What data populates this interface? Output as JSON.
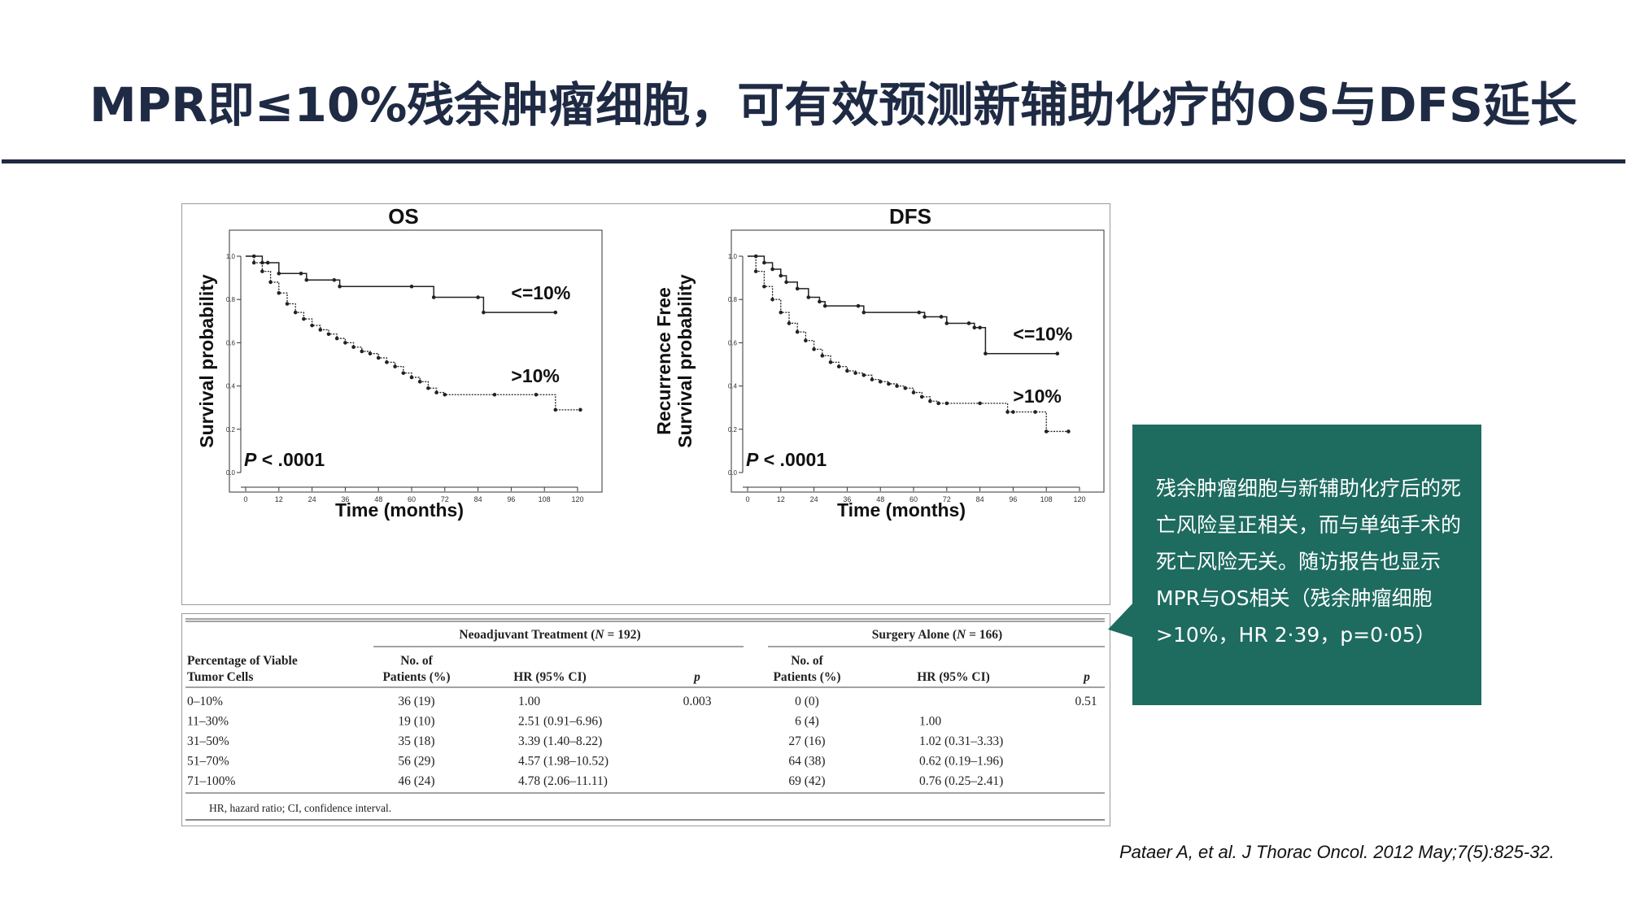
{
  "slide": {
    "title": "MPR即≤10%残余肿瘤细胞，可有效预测新辅助化疗的OS与DFS延长",
    "callout": "残余肿瘤细胞与新辅助化疗后的死亡风险呈正相关，而与单纯手术的死亡风险无关。随访报告也显示MPR与OS相关（残余肿瘤细胞>10%，HR 2·39，p=0·05）",
    "reference": "Pataer A, et al. J Thorac Oncol. 2012 May;7(5):825-32.",
    "colors": {
      "title": "#1f2a44",
      "callout_bg": "#1e6b60"
    }
  },
  "chart_data": [
    {
      "type": "line",
      "title": "OS",
      "xlabel": "Time (months)",
      "ylabel": "Survival probability",
      "xlim": [
        0,
        120
      ],
      "ylim": [
        0,
        1.0
      ],
      "xticks": [
        "0",
        "12",
        "24",
        "36",
        "48",
        "60",
        "72",
        "84",
        "96",
        "108",
        "120"
      ],
      "yticks": [
        "0.0",
        "0.2",
        "0.4",
        "0.6",
        "0.8",
        "1.0"
      ],
      "annotation": "P < .0001",
      "series": [
        {
          "name": "<=10%",
          "style": "solid",
          "x": [
            0,
            3,
            6,
            8,
            12,
            20,
            22,
            32,
            34,
            60,
            68,
            84,
            86,
            112
          ],
          "y": [
            1.0,
            1.0,
            0.97,
            0.97,
            0.92,
            0.92,
            0.89,
            0.89,
            0.86,
            0.86,
            0.81,
            0.81,
            0.74,
            0.74
          ]
        },
        {
          "name": ">10%",
          "style": "dotted",
          "x": [
            0,
            3,
            6,
            9,
            12,
            15,
            18,
            21,
            24,
            27,
            30,
            33,
            36,
            39,
            42,
            45,
            48,
            51,
            54,
            57,
            60,
            63,
            66,
            69,
            72,
            90,
            105,
            112,
            121
          ],
          "y": [
            1.0,
            0.97,
            0.93,
            0.88,
            0.83,
            0.78,
            0.74,
            0.71,
            0.68,
            0.66,
            0.64,
            0.62,
            0.6,
            0.58,
            0.56,
            0.55,
            0.53,
            0.51,
            0.49,
            0.46,
            0.44,
            0.42,
            0.39,
            0.37,
            0.36,
            0.36,
            0.36,
            0.29,
            0.29
          ]
        }
      ]
    },
    {
      "type": "line",
      "title": "DFS",
      "xlabel": "Time (months)",
      "ylabel": "Recurrence Free Survival probability",
      "xlim": [
        0,
        120
      ],
      "ylim": [
        0,
        1.0
      ],
      "xticks": [
        "0",
        "12",
        "24",
        "36",
        "48",
        "60",
        "72",
        "84",
        "96",
        "108",
        "120"
      ],
      "yticks": [
        "0.0",
        "0.2",
        "0.4",
        "0.6",
        "0.8",
        "1.0"
      ],
      "annotation": "P < .0001",
      "series": [
        {
          "name": "<=10%",
          "style": "solid",
          "x": [
            0,
            3,
            6,
            9,
            12,
            14,
            18,
            22,
            26,
            28,
            40,
            42,
            62,
            64,
            70,
            72,
            80,
            82,
            84,
            86,
            112
          ],
          "y": [
            1.0,
            1.0,
            0.97,
            0.94,
            0.91,
            0.88,
            0.85,
            0.81,
            0.79,
            0.77,
            0.77,
            0.74,
            0.74,
            0.72,
            0.72,
            0.69,
            0.69,
            0.67,
            0.67,
            0.55,
            0.55
          ]
        },
        {
          "name": ">10%",
          "style": "dotted",
          "x": [
            0,
            3,
            6,
            9,
            12,
            15,
            18,
            21,
            24,
            27,
            30,
            33,
            36,
            39,
            42,
            45,
            48,
            51,
            54,
            57,
            60,
            63,
            66,
            69,
            72,
            84,
            94,
            96,
            104,
            108,
            116
          ],
          "y": [
            1.0,
            0.93,
            0.86,
            0.8,
            0.74,
            0.69,
            0.65,
            0.61,
            0.57,
            0.54,
            0.51,
            0.49,
            0.47,
            0.46,
            0.45,
            0.43,
            0.42,
            0.41,
            0.4,
            0.39,
            0.37,
            0.35,
            0.33,
            0.32,
            0.32,
            0.32,
            0.28,
            0.28,
            0.28,
            0.19,
            0.19
          ]
        }
      ]
    }
  ],
  "table": {
    "group1": "Neoadjuvant Treatment (N = 192)",
    "group2": "Surgery Alone (N = 166)",
    "col_label_1": "Percentage of Viable",
    "col_label_2": "Tumor Cells",
    "no_of_1": "No. of",
    "no_of_2": "Patients (%)",
    "hr": "HR (95% CI)",
    "p": "p",
    "rows": [
      [
        "0–10%",
        "36 (19)",
        "1.00",
        "0.003",
        "0 (0)",
        "",
        "0.51"
      ],
      [
        "11–30%",
        "19 (10)",
        "2.51 (0.91–6.96)",
        "",
        "6 (4)",
        "1.00",
        ""
      ],
      [
        "31–50%",
        "35 (18)",
        "3.39 (1.40–8.22)",
        "",
        "27 (16)",
        "1.02 (0.31–3.33)",
        ""
      ],
      [
        "51–70%",
        "56 (29)",
        "4.57 (1.98–10.52)",
        "",
        "64 (38)",
        "0.62 (0.19–1.96)",
        ""
      ],
      [
        "71–100%",
        "46 (24)",
        "4.78 (2.06–11.11)",
        "",
        "69 (42)",
        "0.76 (0.25–2.41)",
        ""
      ]
    ],
    "footnote": "HR, hazard ratio; CI, confidence interval."
  }
}
